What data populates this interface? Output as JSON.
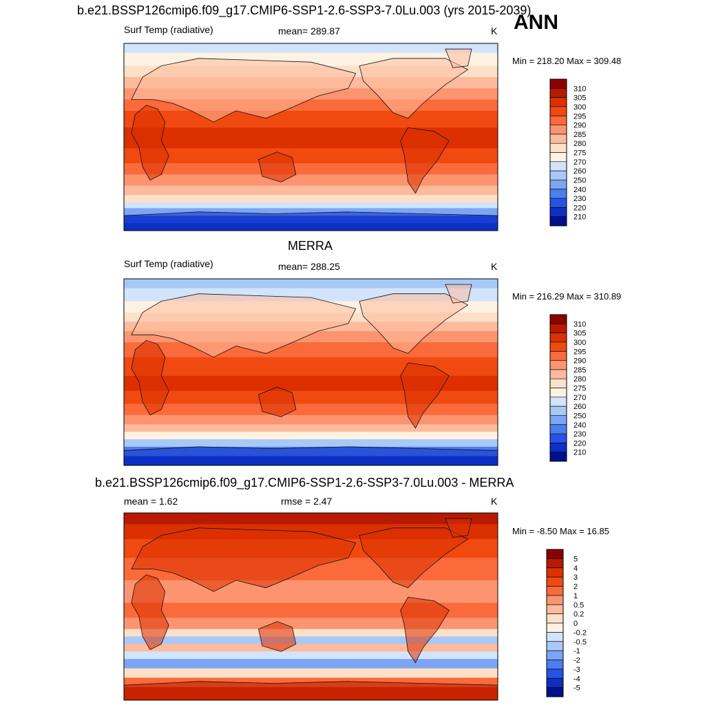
{
  "season": "ANN",
  "chart_data": [
    {
      "type": "heatmap",
      "title": "b.e21.BSSP126cmip6.f09_g17.CMIP6-SSP1-2.6-SSP3-7.0Lu.003 (yrs 2015-2039)",
      "variable": "Surf Temp (radiative)",
      "mean_label": "mean= 289.87",
      "units": "K",
      "minmax_label": "Min = 218.20 Max = 309.48",
      "min": 218.2,
      "max": 309.48,
      "colorbar_labels": [
        "310",
        "305",
        "300",
        "295",
        "290",
        "285",
        "280",
        "275",
        "270",
        "260",
        "250",
        "240",
        "230",
        "220",
        "210"
      ],
      "colorbar_colors": [
        "#8b0000",
        "#b81a00",
        "#dc3000",
        "#f04a10",
        "#fb6a3a",
        "#fc9470",
        "#fdbb9c",
        "#fde0c8",
        "#fef2e2",
        "#d2e4fb",
        "#a8c8f8",
        "#7ca6f4",
        "#4d7ef0",
        "#2653e6",
        "#0d2fc4",
        "#000f8c"
      ]
    },
    {
      "type": "heatmap",
      "title": "MERRA",
      "variable": "Surf Temp (radiative)",
      "mean_label": "mean= 288.25",
      "units": "K",
      "minmax_label": "Min = 216.29 Max = 310.89",
      "min": 216.29,
      "max": 310.89,
      "colorbar_labels": [
        "310",
        "305",
        "300",
        "295",
        "290",
        "285",
        "280",
        "275",
        "270",
        "260",
        "250",
        "240",
        "230",
        "220",
        "210"
      ],
      "colorbar_colors": [
        "#8b0000",
        "#b81a00",
        "#dc3000",
        "#f04a10",
        "#fb6a3a",
        "#fc9470",
        "#fdbb9c",
        "#fde0c8",
        "#fef2e2",
        "#d2e4fb",
        "#a8c8f8",
        "#7ca6f4",
        "#4d7ef0",
        "#2653e6",
        "#0d2fc4",
        "#000f8c"
      ]
    },
    {
      "type": "heatmap",
      "title": "b.e21.BSSP126cmip6.f09_g17.CMIP6-SSP1-2.6-SSP3-7.0Lu.003 - MERRA",
      "mean_label": "mean =   1.62",
      "rmse_label": "rmse =   2.47",
      "units": "K",
      "minmax_label": "Min =  -8.50 Max =  16.85",
      "min": -8.5,
      "max": 16.85,
      "colorbar_labels": [
        "5",
        "4",
        "3",
        "2",
        "1",
        "0.5",
        "0.2",
        "0",
        "-0.2",
        "-0.5",
        "-1",
        "-2",
        "-3",
        "-4",
        "-5"
      ],
      "colorbar_colors": [
        "#8b0000",
        "#b81a00",
        "#dc3000",
        "#f04a10",
        "#fb6a3a",
        "#fc9470",
        "#fdbb9c",
        "#fde0c8",
        "#fef2e2",
        "#d2e4fb",
        "#a8c8f8",
        "#7ca6f4",
        "#4d7ef0",
        "#2653e6",
        "#0d2fc4",
        "#000f8c"
      ]
    }
  ]
}
